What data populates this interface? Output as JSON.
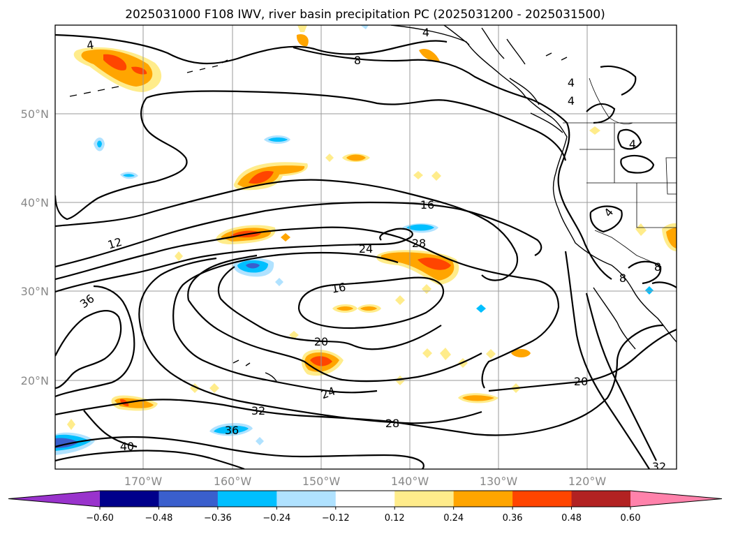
{
  "title": "2025031000 F108 IWV, river basin precipitation PC (2025031200 - 2025031500)",
  "lat_labels": [
    "50°N",
    "40°N",
    "30°N",
    "20°N"
  ],
  "lon_labels": [
    "170°W",
    "160°W",
    "150°W",
    "140°W",
    "130°W",
    "120°W"
  ],
  "contour_labels": {
    "c4a": "4",
    "c4b": "4",
    "c4c": "4",
    "c4d": "4",
    "c4e": "4",
    "c4f": "4",
    "c8a": "8",
    "c8b": "8",
    "c8c": "8",
    "c12": "12",
    "c16a": "16",
    "c16b": "16",
    "c20a": "20",
    "c20b": "20",
    "c24a": "24",
    "c24b": "24",
    "c28a": "28",
    "c28b": "28",
    "c32a": "32",
    "c32b": "32",
    "c36a": "36",
    "c36b": "36",
    "c40": "40"
  },
  "colorbar": {
    "ticks": [
      "−0.60",
      "−0.48",
      "−0.36",
      "−0.24",
      "−0.12",
      "0.12",
      "0.24",
      "0.36",
      "0.48",
      "0.60"
    ],
    "colors": [
      "#9933cc",
      "#00008b",
      "#3a5fcd",
      "#00bfff",
      "#b0e2ff",
      "#ffffff",
      "#ffec8b",
      "#ffa500",
      "#ff4500",
      "#b22222",
      "#ff82ab"
    ]
  }
}
